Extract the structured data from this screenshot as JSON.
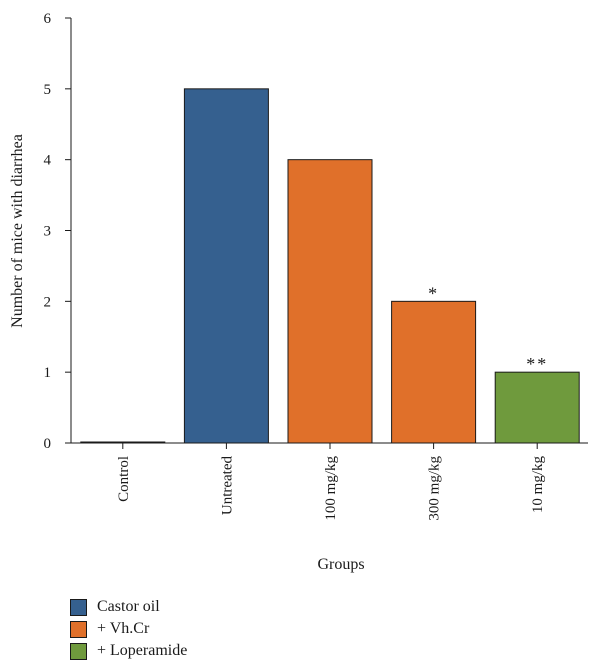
{
  "chart_data": {
    "type": "bar",
    "categories": [
      "Control",
      "Untreated",
      "100 mg/kg",
      "300 mg/kg",
      "10 mg/kg"
    ],
    "values": [
      0,
      5,
      4,
      2,
      1
    ],
    "bar_groups": [
      "Castor oil",
      "Castor oil",
      "+ Vh.Cr",
      "+ Vh.Cr",
      "+ Loperamide"
    ],
    "annotations": [
      "",
      "",
      "",
      "*",
      "**"
    ],
    "xlabel": "Groups",
    "ylabel": "Number of mice with diarrhea",
    "ylim": [
      0,
      6
    ],
    "yticks": [
      "0",
      "1",
      "2",
      "3",
      "4",
      "5",
      "6"
    ],
    "grid": false,
    "legend": {
      "placement": "bottom-left",
      "items": [
        {
          "label": "Castor oil",
          "color": "#35608f"
        },
        {
          "label": "+ Vh.Cr",
          "color": "#e0702a"
        },
        {
          "label": "+ Loperamide",
          "color": "#6f9a3d"
        }
      ]
    },
    "colors": {
      "Castor oil": "#35608f",
      "+ Vh.Cr": "#e0702a",
      "+ Loperamide": "#6f9a3d"
    }
  }
}
